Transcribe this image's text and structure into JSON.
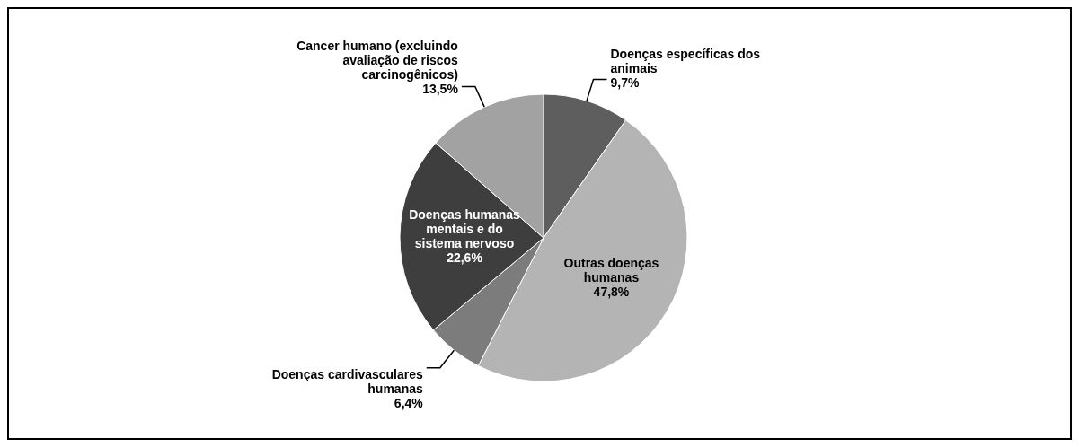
{
  "chart_data": {
    "type": "pie",
    "categories": [
      "Doenças específicas dos animais",
      "Outras doenças humanas",
      "Doenças cardivasculares humanas",
      "Doenças humanas mentais e do sistema nervoso",
      "Cancer humano (excluindo avaliação de riscos carcinogênicos)"
    ],
    "values": [
      9.7,
      47.8,
      6.4,
      22.6,
      13.5
    ],
    "colors": [
      "#5e5e5e",
      "#b4b4b4",
      "#7c7c7c",
      "#3e3e3e",
      "#a2a2a2"
    ],
    "value_labels": [
      "9,7%",
      "47,8%",
      "6,4%",
      "22,6%",
      "13,5%"
    ],
    "legend": false
  }
}
